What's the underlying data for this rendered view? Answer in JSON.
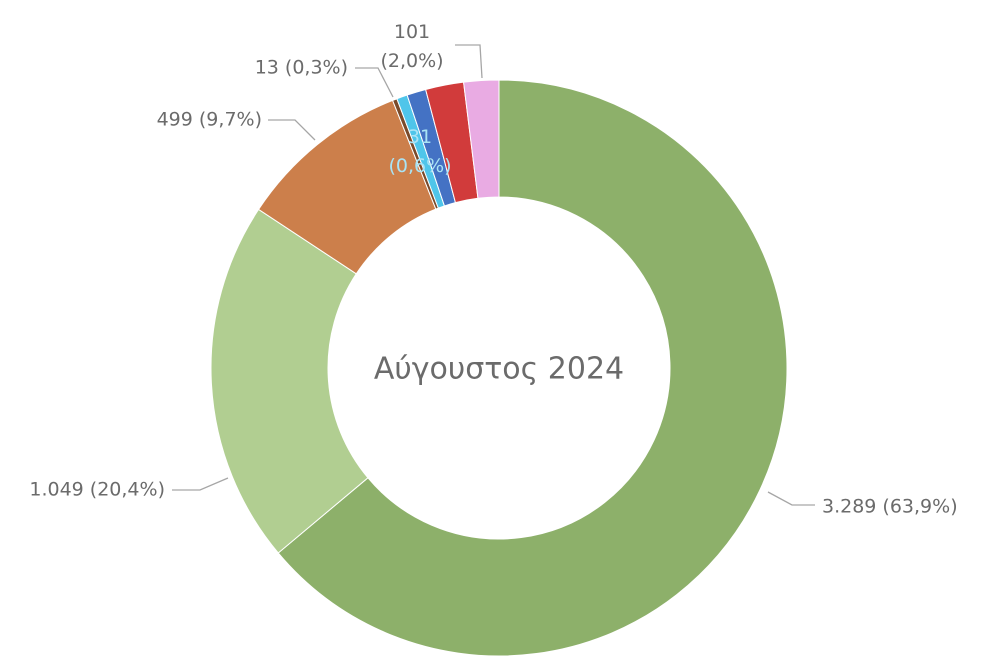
{
  "chart_data": {
    "type": "donut",
    "center_text": "Αύγουστος 2024",
    "values": [
      3289,
      1049,
      499,
      13,
      31,
      55,
      110,
      101
    ],
    "value_labels": [
      "3.289 (63,9%)",
      "1.049 (20,4%)",
      "499 (9,7%)",
      "13 (0,3%)",
      [
        "31",
        "(0,6%)"
      ],
      null,
      null,
      [
        "101",
        "(2,0%)"
      ]
    ],
    "colors": [
      "#8db06a",
      "#b1ce91",
      "#cc7f4b",
      "#7a4a2a",
      "#4fc5ea",
      "#4472c4",
      "#d13b3b",
      "#e9abe3"
    ]
  }
}
